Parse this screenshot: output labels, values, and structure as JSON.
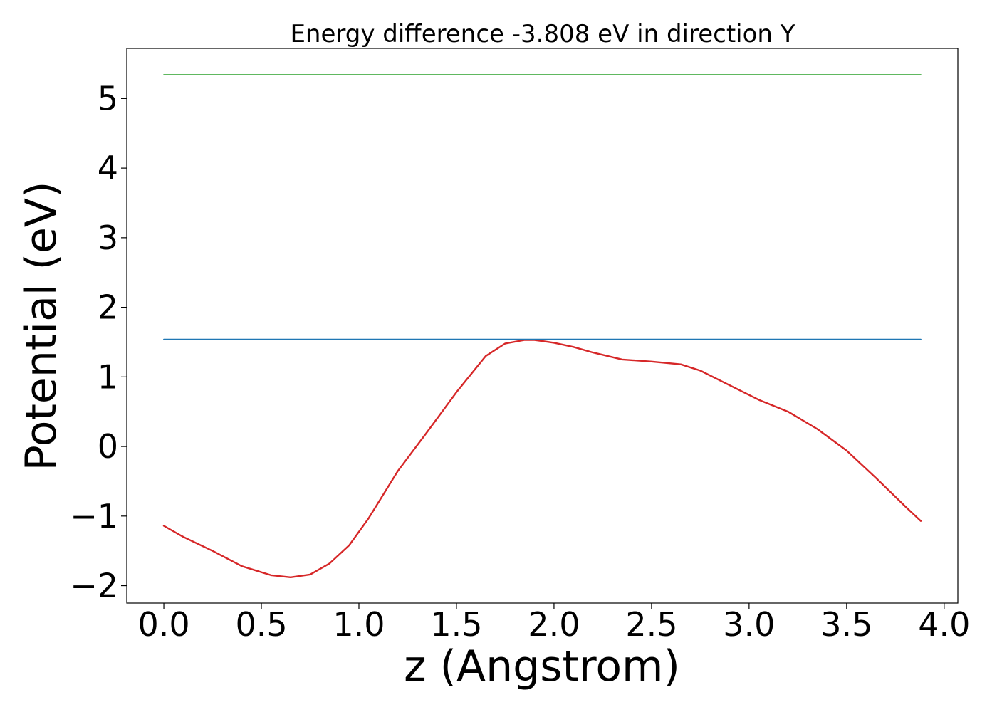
{
  "chart_data": {
    "type": "line",
    "title": "Energy difference -3.808 eV in direction Y",
    "xlabel": "z (Angstrom)",
    "ylabel": "Potential (eV)",
    "xlim": [
      -0.19,
      4.07
    ],
    "ylim": [
      -2.25,
      5.72
    ],
    "xticks": [
      0.0,
      0.5,
      1.0,
      1.5,
      2.0,
      2.5,
      3.0,
      3.5,
      4.0
    ],
    "xtick_labels": [
      "0.0",
      "0.5",
      "1.0",
      "1.5",
      "2.0",
      "2.5",
      "3.0",
      "3.5",
      "4.0"
    ],
    "yticks": [
      -2,
      -1,
      0,
      1,
      2,
      3,
      4,
      5
    ],
    "ytick_labels": [
      "−2",
      "−1",
      "0",
      "1",
      "2",
      "3",
      "4",
      "5"
    ],
    "grid": false,
    "series": [
      {
        "color": "#d62728",
        "x": [
          0.0,
          0.1,
          0.25,
          0.4,
          0.55,
          0.65,
          0.75,
          0.85,
          0.95,
          1.05,
          1.2,
          1.35,
          1.5,
          1.65,
          1.75,
          1.85,
          1.9,
          2.0,
          2.1,
          2.2,
          2.35,
          2.5,
          2.65,
          2.75,
          2.9,
          3.05,
          3.2,
          3.35,
          3.5,
          3.65,
          3.8,
          3.88
        ],
        "values": [
          -1.14,
          -1.3,
          -1.5,
          -1.72,
          -1.85,
          -1.88,
          -1.84,
          -1.68,
          -1.42,
          -1.03,
          -0.35,
          0.21,
          0.78,
          1.3,
          1.48,
          1.53,
          1.53,
          1.49,
          1.43,
          1.35,
          1.25,
          1.22,
          1.18,
          1.09,
          0.88,
          0.67,
          0.5,
          0.25,
          -0.06,
          -0.45,
          -0.86,
          -1.07
        ]
      },
      {
        "color": "#1f77b4",
        "x": [
          0.0,
          3.88
        ],
        "values": [
          1.54,
          1.54
        ]
      },
      {
        "color": "#2ca02c",
        "x": [
          0.0,
          3.88
        ],
        "values": [
          5.34,
          5.34
        ]
      }
    ]
  }
}
